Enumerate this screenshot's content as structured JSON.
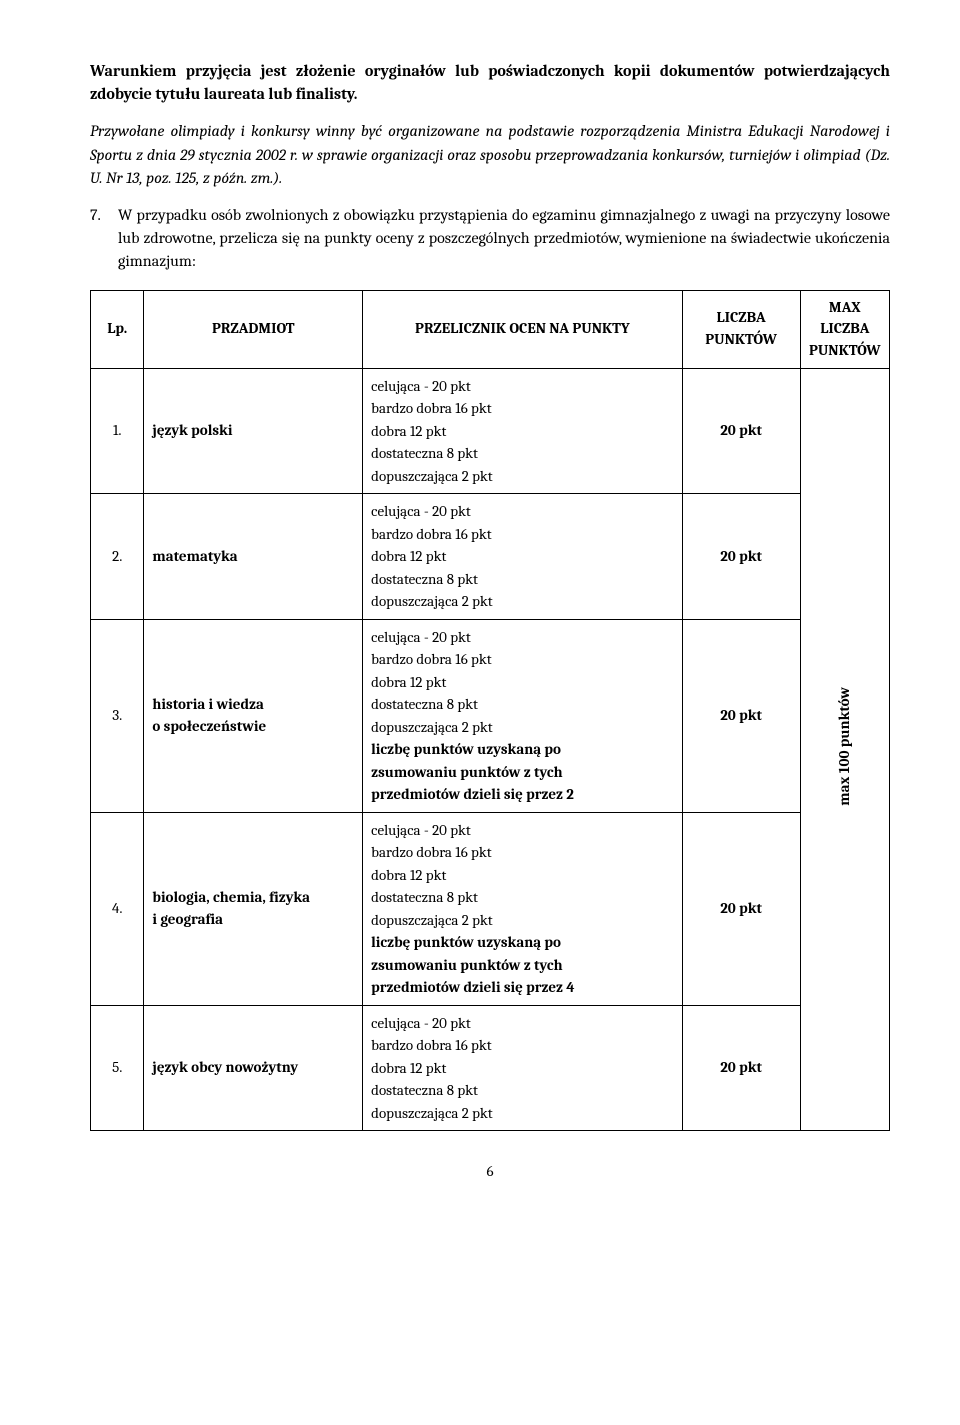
{
  "intro": {
    "p1": "Warunkiem przyjęcia jest złożenie oryginałów lub poświadczonych kopii dokumentów potwierdzających zdobycie tytułu laureata lub finalisty.",
    "p2": "Przywołane olimpiady i konkursy winny być organizowane na podstawie rozporządzenia Ministra Edukacji Narodowej i Sportu z dnia 29 stycznia 2002 r. w sprawie organizacji oraz sposobu przeprowadzania konkursów, turniejów i olimpiad (Dz. U. Nr 13, poz. 125, z późn. zm.)."
  },
  "item7": {
    "num": "7.",
    "text": "W przypadku osób zwolnionych z obowiązku przystąpienia do egzaminu gimnazjalnego z uwagi na przyczyny losowe lub zdrowotne, przelicza się na punkty oceny z poszczególnych przedmiotów, wymienione na świadectwie ukończenia gimnazjum:"
  },
  "table": {
    "headers": {
      "lp": "Lp.",
      "subject": "PRZADMIOT",
      "conversion": "PRZELICZNIK OCEN NA PUNKTY",
      "points": "LICZBA PUNKTÓW",
      "max": "MAX LICZBA PUNKTÓW"
    },
    "max_label": "max 100 punktów",
    "grades": {
      "celujaca": "celująca - 20 pkt",
      "bdb": "bardzo dobra 16 pkt",
      "dobra": "dobra 12 pkt",
      "dost": "dostateczna 8 pkt",
      "dop": "dopuszczająca 2 pkt"
    },
    "divide2": {
      "l1": "liczbę punktów uzyskaną po",
      "l2": "zsumowaniu punktów z tych",
      "l3": "przedmiotów dzieli się przez 2"
    },
    "divide4": {
      "l1": "liczbę punktów uzyskaną po",
      "l2": "zsumowaniu punktów z tych",
      "l3": "przedmiotów dzieli się przez 4"
    },
    "rows": [
      {
        "lp": "1.",
        "subject": "język polski",
        "points": "20 pkt"
      },
      {
        "lp": "2.",
        "subject": "matematyka",
        "points": "20 pkt"
      },
      {
        "lp": "3.",
        "subject_l1": "historia i wiedza",
        "subject_l2": "o społeczeństwie",
        "points": "20 pkt"
      },
      {
        "lp": "4.",
        "subject_l1": "biologia, chemia, fizyka",
        "subject_l2": "i geografia",
        "points": "20 pkt"
      },
      {
        "lp": "5.",
        "subject": "język obcy nowożytny",
        "points": "20 pkt"
      }
    ]
  },
  "page_number": "6"
}
